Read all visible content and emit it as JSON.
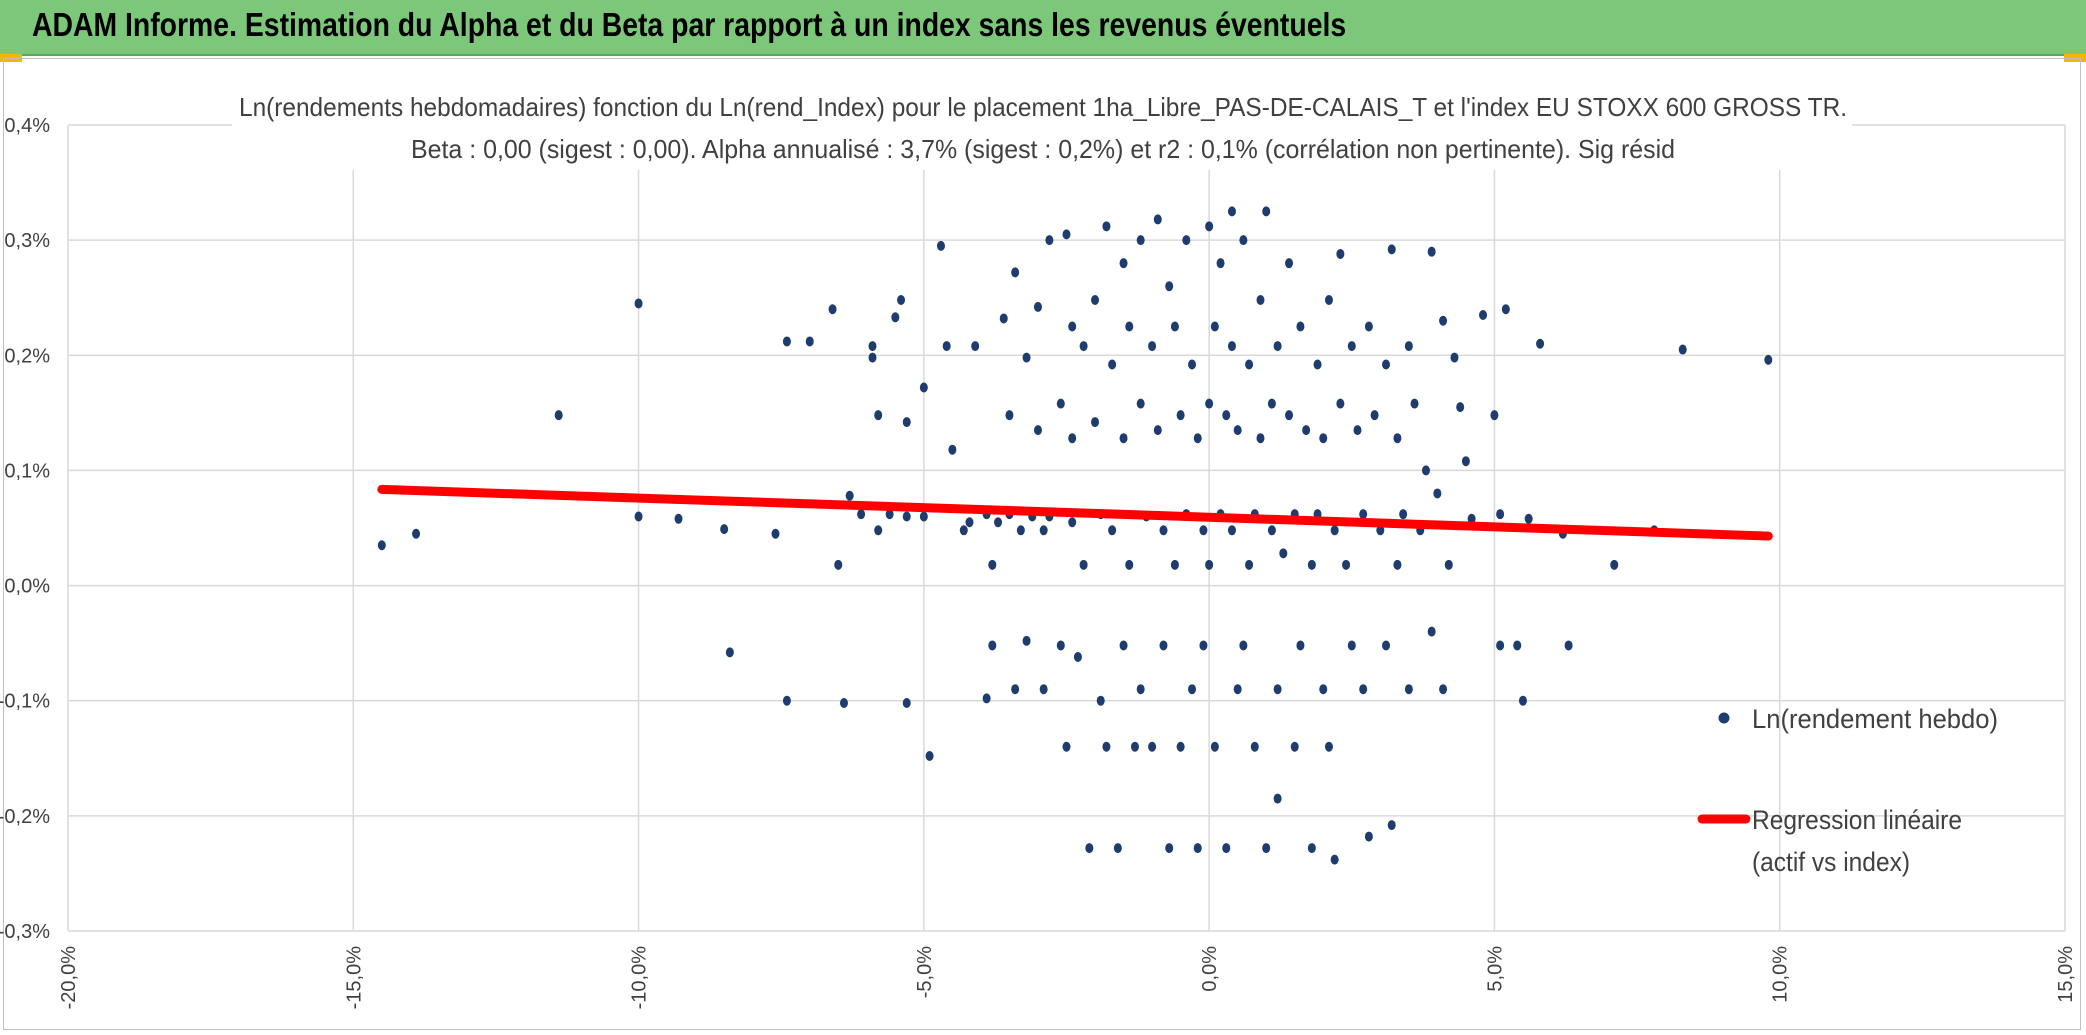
{
  "header": {
    "title": "ADAM Informe. Estimation du Alpha et du Beta par rapport à un index sans les revenus éventuels"
  },
  "colors": {
    "banner": "#7dc77b",
    "points": "#1f3c6e",
    "regression": "#ff0000",
    "grid": "#d9d9d9",
    "text": "#404040"
  },
  "chart_data": {
    "type": "scatter",
    "title_line1": "Ln(rendements hebdomadaires) fonction du Ln(rend_Index) pour le placement 1ha_Libre_PAS-DE-CALAIS_T et l'index EU STOXX 600 GROSS TR.",
    "title_line2": "Beta : 0,00 (sigest : 0,00). Alpha annualisé : 3,7% (sigest : 0,2%) et r2 : 0,1% (corrélation non pertinente). Sig résid",
    "xlabel": "",
    "ylabel": "",
    "xlim": [
      -20,
      15
    ],
    "ylim": [
      -0.3,
      0.4
    ],
    "x_ticks": [
      "-20,0%",
      "-15,0%",
      "-10,0%",
      "-5,0%",
      "0,0%",
      "5,0%",
      "10,0%",
      "15,0%"
    ],
    "y_ticks": [
      "0,4%",
      "0,3%",
      "0,2%",
      "0,1%",
      "0,0%",
      "-0,1%",
      "-0,2%",
      "-0,3%"
    ],
    "grid": true,
    "legend_position": "right",
    "series": [
      {
        "name": "Ln(rendement hebdo)",
        "kind": "points",
        "points": [
          [
            -14.5,
            0.035
          ],
          [
            -13.9,
            0.045
          ],
          [
            -11.4,
            0.148
          ],
          [
            -10.0,
            0.245
          ],
          [
            -10.0,
            0.06
          ],
          [
            -9.3,
            0.058
          ],
          [
            -8.5,
            0.049
          ],
          [
            -8.4,
            -0.058
          ],
          [
            -7.6,
            0.045
          ],
          [
            -7.4,
            0.212
          ],
          [
            -7.4,
            -0.1
          ],
          [
            -7.0,
            0.212
          ],
          [
            -6.6,
            0.24
          ],
          [
            -6.5,
            0.018
          ],
          [
            -6.4,
            -0.102
          ],
          [
            -6.3,
            0.078
          ],
          [
            -6.1,
            0.062
          ],
          [
            -5.9,
            0.198
          ],
          [
            -5.9,
            0.208
          ],
          [
            -5.8,
            0.148
          ],
          [
            -5.8,
            0.048
          ],
          [
            -5.6,
            0.062
          ],
          [
            -5.5,
            0.233
          ],
          [
            -5.4,
            0.248
          ],
          [
            -5.3,
            0.142
          ],
          [
            -5.3,
            0.06
          ],
          [
            -5.3,
            -0.102
          ],
          [
            -5.0,
            0.172
          ],
          [
            -5.0,
            0.06
          ],
          [
            -4.9,
            -0.148
          ],
          [
            -4.7,
            0.295
          ],
          [
            -4.6,
            0.208
          ],
          [
            -4.5,
            0.118
          ],
          [
            -4.3,
            0.048
          ],
          [
            -4.2,
            0.055
          ],
          [
            -4.1,
            0.208
          ],
          [
            -3.9,
            0.062
          ],
          [
            -3.9,
            -0.098
          ],
          [
            -3.8,
            0.018
          ],
          [
            -3.8,
            -0.052
          ],
          [
            -3.7,
            0.055
          ],
          [
            -3.6,
            0.232
          ],
          [
            -3.5,
            0.148
          ],
          [
            -3.5,
            0.062
          ],
          [
            -3.4,
            0.272
          ],
          [
            -3.4,
            -0.09
          ],
          [
            -3.3,
            0.048
          ],
          [
            -3.2,
            0.198
          ],
          [
            -3.2,
            -0.048
          ],
          [
            -3.1,
            0.06
          ],
          [
            -3.0,
            0.242
          ],
          [
            -3.0,
            0.135
          ],
          [
            -2.9,
            0.048
          ],
          [
            -2.9,
            -0.09
          ],
          [
            -2.8,
            0.3
          ],
          [
            -2.8,
            0.06
          ],
          [
            -2.6,
            0.158
          ],
          [
            -2.6,
            -0.052
          ],
          [
            -2.5,
            0.305
          ],
          [
            -2.5,
            -0.14
          ],
          [
            -2.4,
            0.225
          ],
          [
            -2.4,
            0.128
          ],
          [
            -2.4,
            0.055
          ],
          [
            -2.3,
            -0.062
          ],
          [
            -2.2,
            0.208
          ],
          [
            -2.2,
            0.018
          ],
          [
            -2.1,
            -0.228
          ],
          [
            -2.0,
            0.248
          ],
          [
            -2.0,
            0.142
          ],
          [
            -1.9,
            0.062
          ],
          [
            -1.9,
            -0.1
          ],
          [
            -1.8,
            0.312
          ],
          [
            -1.8,
            -0.14
          ],
          [
            -1.7,
            0.192
          ],
          [
            -1.7,
            0.048
          ],
          [
            -1.6,
            -0.228
          ],
          [
            -1.5,
            0.28
          ],
          [
            -1.5,
            0.128
          ],
          [
            -1.5,
            -0.052
          ],
          [
            -1.4,
            0.225
          ],
          [
            -1.4,
            0.018
          ],
          [
            -1.3,
            -0.14
          ],
          [
            -1.2,
            0.3
          ],
          [
            -1.2,
            0.158
          ],
          [
            -1.2,
            -0.09
          ],
          [
            -1.1,
            0.06
          ],
          [
            -1.0,
            0.208
          ],
          [
            -1.0,
            -0.14
          ],
          [
            -0.9,
            0.318
          ],
          [
            -0.9,
            0.135
          ],
          [
            -0.8,
            0.048
          ],
          [
            -0.8,
            -0.052
          ],
          [
            -0.7,
            0.26
          ],
          [
            -0.7,
            -0.228
          ],
          [
            -0.6,
            0.225
          ],
          [
            -0.6,
            0.018
          ],
          [
            -0.5,
            0.148
          ],
          [
            -0.5,
            -0.14
          ],
          [
            -0.4,
            0.3
          ],
          [
            -0.4,
            0.062
          ],
          [
            -0.3,
            0.192
          ],
          [
            -0.3,
            -0.09
          ],
          [
            -0.2,
            0.128
          ],
          [
            -0.2,
            -0.228
          ],
          [
            -0.1,
            0.048
          ],
          [
            -0.1,
            -0.052
          ],
          [
            0.0,
            0.312
          ],
          [
            0.0,
            0.158
          ],
          [
            0.0,
            0.018
          ],
          [
            0.1,
            0.225
          ],
          [
            0.1,
            -0.14
          ],
          [
            0.2,
            0.28
          ],
          [
            0.2,
            0.062
          ],
          [
            0.3,
            0.148
          ],
          [
            0.3,
            -0.228
          ],
          [
            0.4,
            0.325
          ],
          [
            0.4,
            0.208
          ],
          [
            0.4,
            0.048
          ],
          [
            0.5,
            0.135
          ],
          [
            0.5,
            -0.09
          ],
          [
            0.6,
            0.3
          ],
          [
            0.6,
            -0.052
          ],
          [
            0.7,
            0.192
          ],
          [
            0.7,
            0.018
          ],
          [
            0.8,
            0.062
          ],
          [
            0.8,
            -0.14
          ],
          [
            0.9,
            0.248
          ],
          [
            0.9,
            0.128
          ],
          [
            1.0,
            0.325
          ],
          [
            1.0,
            -0.228
          ],
          [
            1.1,
            0.158
          ],
          [
            1.1,
            0.048
          ],
          [
            1.2,
            0.208
          ],
          [
            1.2,
            -0.09
          ],
          [
            1.2,
            -0.185
          ],
          [
            1.3,
            0.028
          ],
          [
            1.4,
            0.28
          ],
          [
            1.4,
            0.148
          ],
          [
            1.5,
            0.062
          ],
          [
            1.5,
            -0.14
          ],
          [
            1.6,
            0.225
          ],
          [
            1.6,
            -0.052
          ],
          [
            1.7,
            0.135
          ],
          [
            1.8,
            0.018
          ],
          [
            1.8,
            -0.228
          ],
          [
            1.9,
            0.192
          ],
          [
            1.9,
            0.062
          ],
          [
            2.0,
            0.128
          ],
          [
            2.0,
            -0.09
          ],
          [
            2.1,
            0.248
          ],
          [
            2.1,
            -0.14
          ],
          [
            2.2,
            0.048
          ],
          [
            2.2,
            -0.238
          ],
          [
            2.3,
            0.288
          ],
          [
            2.3,
            0.158
          ],
          [
            2.4,
            0.018
          ],
          [
            2.5,
            0.208
          ],
          [
            2.5,
            -0.052
          ],
          [
            2.6,
            0.135
          ],
          [
            2.7,
            0.062
          ],
          [
            2.7,
            -0.09
          ],
          [
            2.8,
            0.225
          ],
          [
            2.8,
            -0.218
          ],
          [
            2.9,
            0.148
          ],
          [
            3.0,
            0.048
          ],
          [
            3.1,
            0.192
          ],
          [
            3.1,
            -0.052
          ],
          [
            3.2,
            0.292
          ],
          [
            3.2,
            -0.208
          ],
          [
            3.3,
            0.128
          ],
          [
            3.3,
            0.018
          ],
          [
            3.4,
            0.062
          ],
          [
            3.5,
            0.208
          ],
          [
            3.5,
            -0.09
          ],
          [
            3.6,
            0.158
          ],
          [
            3.7,
            0.048
          ],
          [
            3.8,
            0.1
          ],
          [
            3.9,
            0.29
          ],
          [
            3.9,
            -0.04
          ],
          [
            4.0,
            0.08
          ],
          [
            4.1,
            0.23
          ],
          [
            4.1,
            -0.09
          ],
          [
            4.2,
            0.018
          ],
          [
            4.3,
            0.198
          ],
          [
            4.4,
            0.155
          ],
          [
            4.5,
            0.108
          ],
          [
            4.6,
            0.058
          ],
          [
            4.8,
            0.235
          ],
          [
            5.0,
            0.148
          ],
          [
            5.1,
            0.062
          ],
          [
            5.1,
            -0.052
          ],
          [
            5.2,
            0.24
          ],
          [
            5.4,
            -0.052
          ],
          [
            5.5,
            -0.1
          ],
          [
            5.6,
            0.058
          ],
          [
            5.8,
            0.21
          ],
          [
            6.2,
            0.045
          ],
          [
            6.3,
            -0.052
          ],
          [
            7.1,
            0.018
          ],
          [
            7.8,
            0.048
          ],
          [
            8.3,
            0.205
          ],
          [
            9.8,
            0.196
          ]
        ]
      },
      {
        "name": "Regression linéaire\n(actif vs index)",
        "kind": "line",
        "x": [
          -14.5,
          9.8
        ],
        "y": [
          0.0835,
          0.043
        ]
      }
    ]
  },
  "legend": {
    "points_label": "Ln(rendement hebdo)",
    "line_label_1": "Regression linéaire",
    "line_label_2": "(actif vs index)"
  }
}
